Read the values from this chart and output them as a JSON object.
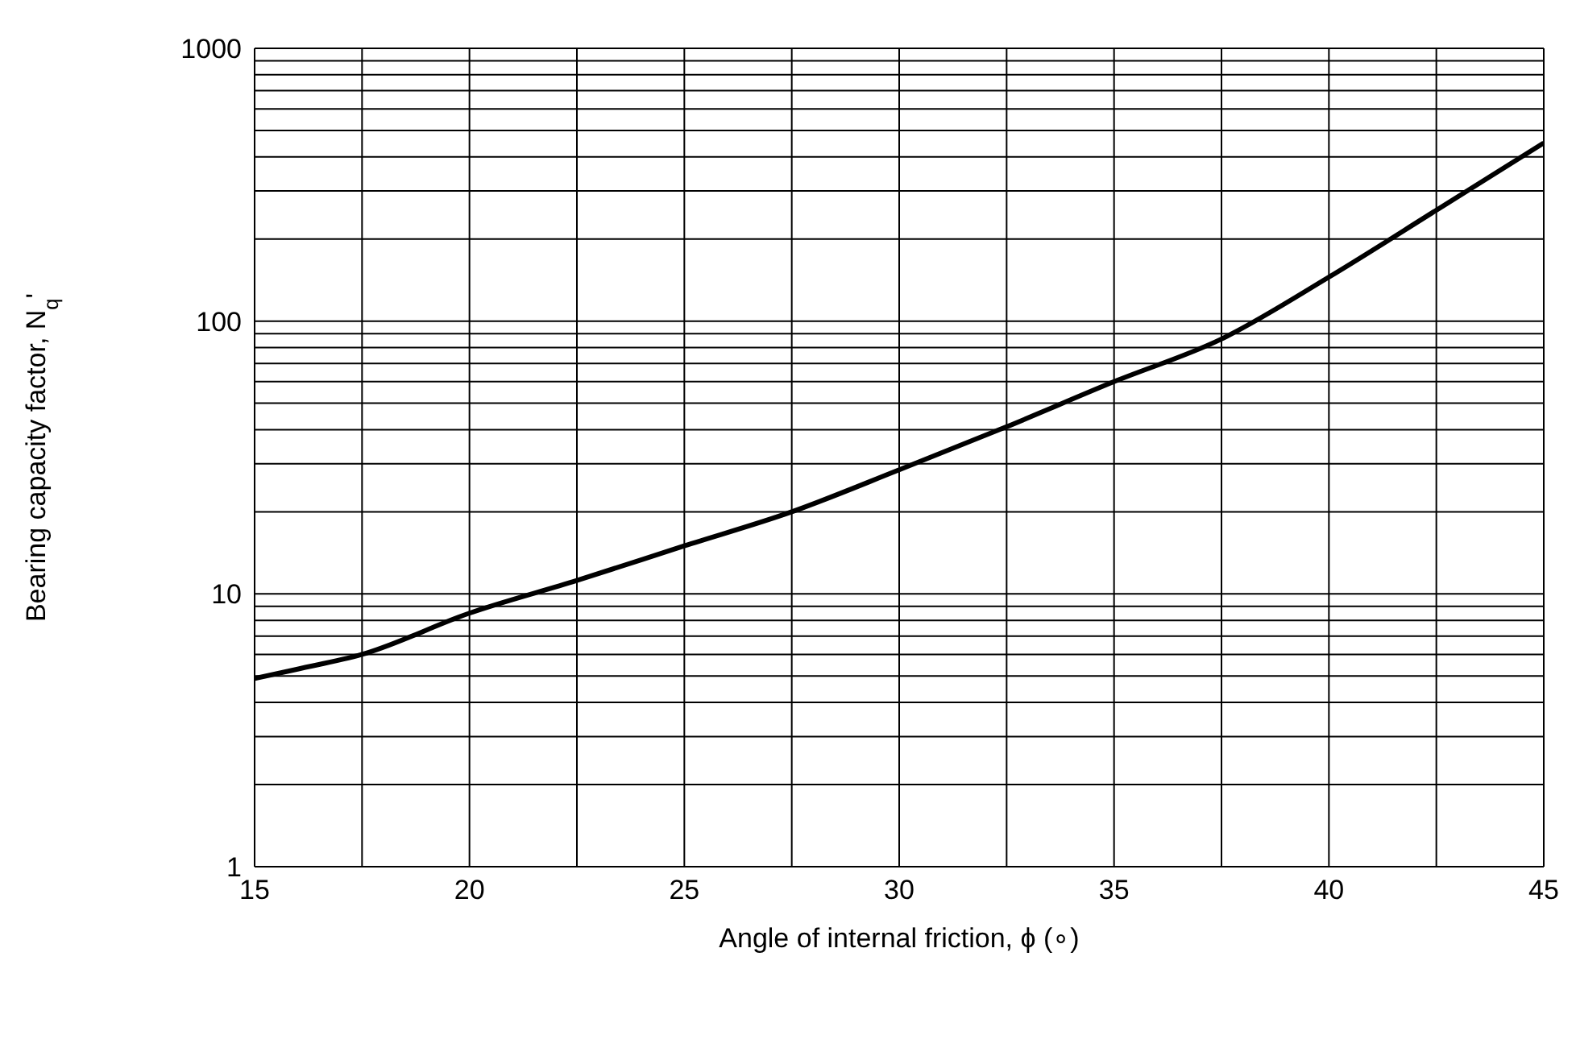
{
  "chart_data": {
    "type": "line",
    "xlabel": "Angle of internal friction, ϕ (∘)",
    "ylabel": "Bearing capacity factor, N$_{q}$'",
    "x": [
      15,
      16,
      17.5,
      20,
      22.5,
      25,
      27.5,
      30,
      32.5,
      35,
      37.5,
      40,
      42.5,
      45
    ],
    "series": [
      {
        "color": "#000000",
        "values": [
          4.9,
          5.3,
          6.0,
          8.5,
          11.2,
          15,
          20,
          28.5,
          41,
          60,
          86,
          145,
          255,
          450
        ]
      }
    ],
    "log": "y",
    "xlim": [
      15,
      45
    ],
    "ylim": [
      1,
      1000
    ],
    "xticks": [
      15,
      {
        "value": 17.5,
        "label": null
      },
      20,
      {
        "value": 22.5,
        "label": null
      },
      25,
      {
        "value": 27.5,
        "label": null
      },
      30,
      {
        "value": 32.5,
        "label": null
      },
      35,
      {
        "value": 37.5,
        "label": null
      },
      40,
      {
        "value": 42.5,
        "label": null
      },
      45
    ],
    "yticks": [
      1,
      {
        "value": 2,
        "label": null
      },
      {
        "value": 3,
        "label": null
      },
      {
        "value": 4,
        "label": null
      },
      {
        "value": 5,
        "label": null
      },
      {
        "value": 6,
        "label": null
      },
      {
        "value": 7,
        "label": null
      },
      {
        "value": 8,
        "label": null
      },
      {
        "value": 9,
        "label": null
      },
      10,
      {
        "value": 20,
        "label": null
      },
      {
        "value": 30,
        "label": null
      },
      {
        "value": 40,
        "label": null
      },
      {
        "value": 50,
        "label": null
      },
      {
        "value": 60,
        "label": null
      },
      {
        "value": 70,
        "label": null
      },
      {
        "value": 80,
        "label": null
      },
      {
        "value": 90,
        "label": null
      },
      100,
      {
        "value": 200,
        "label": null
      },
      {
        "value": 300,
        "label": null
      },
      {
        "value": 400,
        "label": null
      },
      {
        "value": 500,
        "label": null
      },
      {
        "value": 600,
        "label": null
      },
      {
        "value": 700,
        "label": null
      },
      {
        "value": 800,
        "label": null
      },
      {
        "value": 900,
        "label": null
      },
      1000
    ],
    "grid": true,
    "marker": "none",
    "line_style": "solid"
  }
}
